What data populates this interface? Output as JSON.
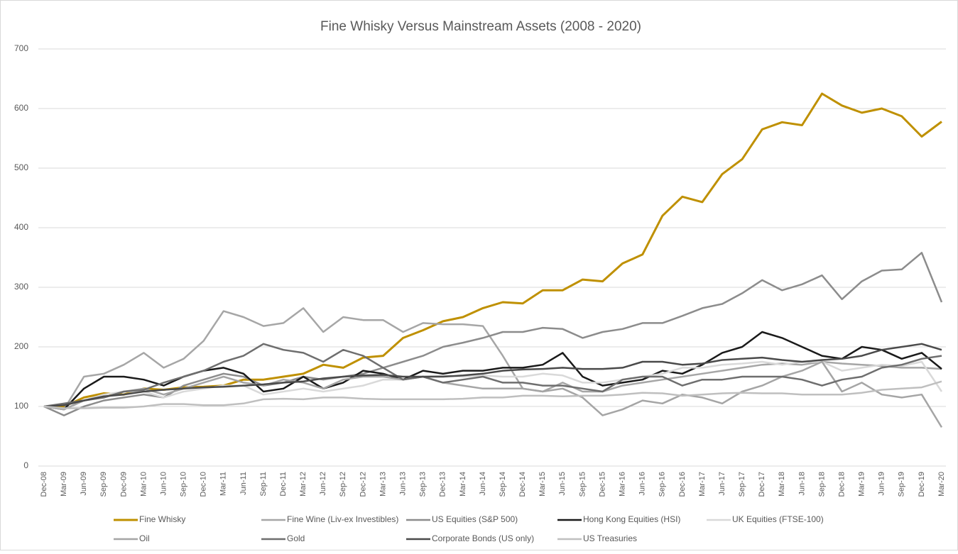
{
  "chart_data": {
    "type": "line",
    "title": "Fine Whisky Versus Mainstream Assets (2008 - 2020)",
    "categories": [
      "Dec-08",
      "Mar-09",
      "Jun-09",
      "Sep-09",
      "Dec-09",
      "Mar-10",
      "Jun-10",
      "Sep-10",
      "Dec-10",
      "Mar-11",
      "Jun-11",
      "Sep-11",
      "Dec-11",
      "Mar-12",
      "Jun-12",
      "Sep-12",
      "Dec-12",
      "Mar-13",
      "Jun-13",
      "Sep-13",
      "Dec-13",
      "Mar-14",
      "Jun-14",
      "Sep-14",
      "Dec-14",
      "Mar-15",
      "Jun-15",
      "Sep-15",
      "Dec-15",
      "Mar-16",
      "Jun-16",
      "Sep-16",
      "Dec-16",
      "Mar-17",
      "Jun-17",
      "Sep-17",
      "Dec-17",
      "Mar-18",
      "Jun-18",
      "Sep-18",
      "Dec-18",
      "Mar-19",
      "Jun-19",
      "Sep-19",
      "Dec-19",
      "Mar-20"
    ],
    "series": [
      {
        "name": "Fine Whisky",
        "color": "#bf9000",
        "width": 3,
        "values": [
          100,
          100,
          115,
          122,
          120,
          130,
          128,
          132,
          133,
          135,
          145,
          145,
          150,
          155,
          170,
          165,
          182,
          185,
          215,
          228,
          243,
          250,
          265,
          275,
          273,
          295,
          295,
          313,
          310,
          340,
          355,
          420,
          452,
          443,
          490,
          515,
          565,
          577,
          572,
          625,
          605,
          593,
          600,
          587,
          553,
          578
        ]
      },
      {
        "name": "Fine Wine (Liv-ex Investibles)",
        "color": "#a6a6a6",
        "width": 2.5,
        "values": [
          100,
          95,
          150,
          155,
          170,
          190,
          165,
          180,
          210,
          260,
          250,
          235,
          240,
          265,
          225,
          250,
          245,
          245,
          225,
          240,
          238,
          238,
          235,
          185,
          130,
          125,
          140,
          125,
          125,
          135,
          140,
          145,
          150,
          155,
          160,
          165,
          170,
          172,
          170,
          175,
          172,
          170,
          168,
          165,
          165,
          163
        ]
      },
      {
        "name": "US Equities (S&P 500)",
        "color": "#8c8c8c",
        "width": 2.5,
        "values": [
          100,
          85,
          100,
          110,
          115,
          120,
          115,
          135,
          145,
          155,
          150,
          135,
          140,
          150,
          145,
          150,
          155,
          165,
          175,
          185,
          200,
          207,
          215,
          225,
          225,
          232,
          230,
          215,
          225,
          230,
          240,
          240,
          252,
          265,
          272,
          290,
          312,
          295,
          305,
          320,
          280,
          310,
          328,
          330,
          358,
          275
        ]
      },
      {
        "name": "Hong Kong Equities (HSI)",
        "color": "#1a1a1a",
        "width": 2.5,
        "values": [
          100,
          95,
          130,
          150,
          150,
          145,
          135,
          150,
          160,
          165,
          155,
          125,
          130,
          150,
          130,
          140,
          160,
          155,
          145,
          160,
          155,
          160,
          160,
          165,
          165,
          170,
          190,
          150,
          135,
          140,
          145,
          160,
          155,
          170,
          190,
          200,
          225,
          215,
          200,
          185,
          180,
          200,
          195,
          180,
          190,
          163
        ]
      },
      {
        "name": "UK Equities (FTSE-100)",
        "color": "#d9d9d9",
        "width": 2.5,
        "values": [
          100,
          95,
          110,
          120,
          125,
          125,
          115,
          125,
          130,
          135,
          135,
          120,
          125,
          130,
          125,
          130,
          135,
          145,
          145,
          150,
          152,
          150,
          152,
          150,
          150,
          155,
          152,
          140,
          140,
          145,
          150,
          155,
          165,
          165,
          170,
          172,
          175,
          170,
          175,
          175,
          160,
          165,
          170,
          168,
          175,
          125
        ]
      },
      {
        "name": "Oil",
        "color": "#a5a5a5",
        "width": 2.5,
        "values": [
          100,
          95,
          110,
          115,
          125,
          130,
          120,
          130,
          140,
          150,
          140,
          135,
          145,
          140,
          130,
          145,
          150,
          150,
          145,
          150,
          140,
          135,
          130,
          130,
          130,
          125,
          130,
          115,
          85,
          95,
          110,
          105,
          120,
          115,
          105,
          125,
          135,
          150,
          160,
          175,
          125,
          140,
          120,
          115,
          120,
          65
        ]
      },
      {
        "name": "Gold",
        "color": "#6e6e6e",
        "width": 2.5,
        "values": [
          100,
          105,
          110,
          115,
          125,
          128,
          140,
          150,
          160,
          175,
          185,
          205,
          195,
          190,
          175,
          195,
          185,
          165,
          145,
          150,
          140,
          145,
          150,
          140,
          140,
          135,
          135,
          130,
          125,
          145,
          150,
          150,
          135,
          145,
          145,
          150,
          150,
          150,
          145,
          135,
          145,
          150,
          165,
          170,
          180,
          185
        ]
      },
      {
        "name": "Corporate Bonds (US only)",
        "color": "#4a4a4a",
        "width": 2.5,
        "values": [
          100,
          102,
          110,
          117,
          120,
          125,
          128,
          130,
          132,
          133,
          135,
          137,
          140,
          142,
          147,
          150,
          152,
          153,
          150,
          150,
          150,
          152,
          155,
          160,
          162,
          163,
          165,
          163,
          163,
          165,
          175,
          175,
          170,
          172,
          178,
          180,
          182,
          178,
          175,
          178,
          180,
          185,
          195,
          200,
          205,
          195
        ]
      },
      {
        "name": "US Treasuries",
        "color": "#bfbfbf",
        "width": 2.5,
        "values": [
          100,
          97,
          97,
          98,
          98,
          100,
          104,
          104,
          102,
          102,
          105,
          112,
          113,
          112,
          115,
          115,
          113,
          112,
          112,
          112,
          112,
          113,
          115,
          115,
          118,
          118,
          117,
          118,
          118,
          120,
          123,
          122,
          118,
          120,
          122,
          123,
          122,
          122,
          120,
          120,
          120,
          123,
          128,
          130,
          132,
          142
        ]
      }
    ],
    "ylim": [
      0,
      700
    ],
    "yticks": [
      0,
      100,
      200,
      300,
      400,
      500,
      600,
      700
    ],
    "grid": true,
    "legend": "bottom"
  }
}
